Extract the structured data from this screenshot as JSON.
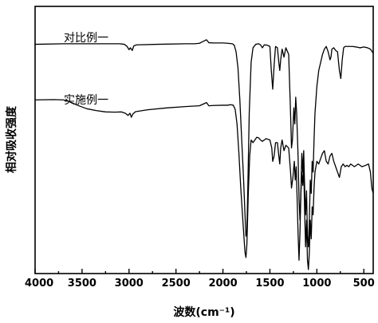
{
  "chart_data": {
    "type": "line",
    "title": "",
    "xlabel": "波数(cm⁻¹)",
    "ylabel": "相对吸收强度",
    "xlim": [
      4000,
      400
    ],
    "x_reversed": true,
    "xticks": [
      4000,
      3500,
      3000,
      2500,
      2000,
      1500,
      1000,
      500
    ],
    "y_ticks_shown": false,
    "ylim": [
      0,
      1
    ],
    "grid": false,
    "legend": "none",
    "series": [
      {
        "name": "对比例一",
        "points": [
          [
            4000,
            0.858
          ],
          [
            3700,
            0.86
          ],
          [
            3400,
            0.86
          ],
          [
            3100,
            0.86
          ],
          [
            3050,
            0.858
          ],
          [
            3020,
            0.85
          ],
          [
            3000,
            0.838
          ],
          [
            2985,
            0.845
          ],
          [
            2965,
            0.835
          ],
          [
            2950,
            0.852
          ],
          [
            2920,
            0.856
          ],
          [
            2700,
            0.858
          ],
          [
            2400,
            0.86
          ],
          [
            2300,
            0.86
          ],
          [
            2250,
            0.862
          ],
          [
            2175,
            0.875
          ],
          [
            2150,
            0.864
          ],
          [
            2100,
            0.863
          ],
          [
            2000,
            0.863
          ],
          [
            1950,
            0.862
          ],
          [
            1900,
            0.86
          ],
          [
            1880,
            0.855
          ],
          [
            1860,
            0.83
          ],
          [
            1840,
            0.77
          ],
          [
            1820,
            0.65
          ],
          [
            1800,
            0.5
          ],
          [
            1780,
            0.35
          ],
          [
            1765,
            0.22
          ],
          [
            1755,
            0.14
          ],
          [
            1745,
            0.16
          ],
          [
            1735,
            0.32
          ],
          [
            1720,
            0.6
          ],
          [
            1700,
            0.79
          ],
          [
            1680,
            0.845
          ],
          [
            1650,
            0.858
          ],
          [
            1620,
            0.86
          ],
          [
            1600,
            0.856
          ],
          [
            1580,
            0.845
          ],
          [
            1560,
            0.856
          ],
          [
            1530,
            0.855
          ],
          [
            1500,
            0.85
          ],
          [
            1485,
            0.76
          ],
          [
            1470,
            0.69
          ],
          [
            1455,
            0.78
          ],
          [
            1440,
            0.85
          ],
          [
            1420,
            0.845
          ],
          [
            1405,
            0.79
          ],
          [
            1395,
            0.76
          ],
          [
            1385,
            0.8
          ],
          [
            1370,
            0.84
          ],
          [
            1350,
            0.81
          ],
          [
            1330,
            0.845
          ],
          [
            1300,
            0.82
          ],
          [
            1280,
            0.6
          ],
          [
            1270,
            0.47
          ],
          [
            1260,
            0.5
          ],
          [
            1245,
            0.62
          ],
          [
            1235,
            0.56
          ],
          [
            1225,
            0.66
          ],
          [
            1215,
            0.6
          ],
          [
            1200,
            0.44
          ],
          [
            1190,
            0.28
          ],
          [
            1180,
            0.2
          ],
          [
            1170,
            0.3
          ],
          [
            1160,
            0.45
          ],
          [
            1150,
            0.38
          ],
          [
            1140,
            0.46
          ],
          [
            1130,
            0.32
          ],
          [
            1120,
            0.22
          ],
          [
            1110,
            0.31
          ],
          [
            1100,
            0.14
          ],
          [
            1090,
            0.1
          ],
          [
            1080,
            0.2
          ],
          [
            1070,
            0.35
          ],
          [
            1060,
            0.3
          ],
          [
            1050,
            0.42
          ],
          [
            1040,
            0.38
          ],
          [
            1030,
            0.5
          ],
          [
            1020,
            0.6
          ],
          [
            1000,
            0.7
          ],
          [
            980,
            0.76
          ],
          [
            960,
            0.79
          ],
          [
            940,
            0.82
          ],
          [
            920,
            0.84
          ],
          [
            900,
            0.85
          ],
          [
            880,
            0.83
          ],
          [
            860,
            0.8
          ],
          [
            850,
            0.81
          ],
          [
            840,
            0.84
          ],
          [
            820,
            0.845
          ],
          [
            800,
            0.835
          ],
          [
            780,
            0.83
          ],
          [
            760,
            0.76
          ],
          [
            745,
            0.73
          ],
          [
            730,
            0.8
          ],
          [
            715,
            0.845
          ],
          [
            700,
            0.85
          ],
          [
            660,
            0.85
          ],
          [
            620,
            0.85
          ],
          [
            580,
            0.848
          ],
          [
            540,
            0.845
          ],
          [
            500,
            0.848
          ],
          [
            460,
            0.845
          ],
          [
            430,
            0.84
          ],
          [
            410,
            0.83
          ],
          [
            400,
            0.825
          ]
        ]
      },
      {
        "name": "实施例一",
        "points": [
          [
            4000,
            0.65
          ],
          [
            3800,
            0.651
          ],
          [
            3700,
            0.65
          ],
          [
            3650,
            0.646
          ],
          [
            3550,
            0.63
          ],
          [
            3450,
            0.617
          ],
          [
            3350,
            0.61
          ],
          [
            3250,
            0.605
          ],
          [
            3150,
            0.604
          ],
          [
            3080,
            0.605
          ],
          [
            3040,
            0.6
          ],
          [
            3010,
            0.592
          ],
          [
            2990,
            0.6
          ],
          [
            2975,
            0.585
          ],
          [
            2960,
            0.597
          ],
          [
            2930,
            0.606
          ],
          [
            2800,
            0.613
          ],
          [
            2600,
            0.62
          ],
          [
            2400,
            0.625
          ],
          [
            2250,
            0.628
          ],
          [
            2175,
            0.64
          ],
          [
            2150,
            0.628
          ],
          [
            2100,
            0.629
          ],
          [
            2000,
            0.63
          ],
          [
            1950,
            0.63
          ],
          [
            1920,
            0.632
          ],
          [
            1890,
            0.63
          ],
          [
            1870,
            0.615
          ],
          [
            1850,
            0.56
          ],
          [
            1830,
            0.45
          ],
          [
            1810,
            0.32
          ],
          [
            1790,
            0.21
          ],
          [
            1775,
            0.13
          ],
          [
            1765,
            0.08
          ],
          [
            1755,
            0.06
          ],
          [
            1745,
            0.11
          ],
          [
            1730,
            0.3
          ],
          [
            1715,
            0.44
          ],
          [
            1700,
            0.5
          ],
          [
            1680,
            0.49
          ],
          [
            1660,
            0.5
          ],
          [
            1640,
            0.51
          ],
          [
            1620,
            0.508
          ],
          [
            1600,
            0.5
          ],
          [
            1580,
            0.495
          ],
          [
            1560,
            0.5
          ],
          [
            1540,
            0.505
          ],
          [
            1500,
            0.5
          ],
          [
            1480,
            0.47
          ],
          [
            1470,
            0.42
          ],
          [
            1455,
            0.44
          ],
          [
            1440,
            0.49
          ],
          [
            1420,
            0.49
          ],
          [
            1405,
            0.44
          ],
          [
            1395,
            0.41
          ],
          [
            1385,
            0.47
          ],
          [
            1370,
            0.5
          ],
          [
            1350,
            0.46
          ],
          [
            1330,
            0.48
          ],
          [
            1300,
            0.47
          ],
          [
            1280,
            0.38
          ],
          [
            1270,
            0.32
          ],
          [
            1255,
            0.36
          ],
          [
            1240,
            0.42
          ],
          [
            1230,
            0.35
          ],
          [
            1220,
            0.4
          ],
          [
            1210,
            0.28
          ],
          [
            1200,
            0.15
          ],
          [
            1190,
            0.05
          ],
          [
            1180,
            0.15
          ],
          [
            1170,
            0.3
          ],
          [
            1160,
            0.38
          ],
          [
            1150,
            0.33
          ],
          [
            1140,
            0.4
          ],
          [
            1130,
            0.23
          ],
          [
            1120,
            0.1
          ],
          [
            1110,
            0.2
          ],
          [
            1100,
            0.05
          ],
          [
            1090,
            0.015
          ],
          [
            1080,
            0.08
          ],
          [
            1070,
            0.2
          ],
          [
            1060,
            0.13
          ],
          [
            1050,
            0.25
          ],
          [
            1040,
            0.22
          ],
          [
            1030,
            0.32
          ],
          [
            1020,
            0.38
          ],
          [
            1000,
            0.42
          ],
          [
            980,
            0.41
          ],
          [
            960,
            0.43
          ],
          [
            940,
            0.45
          ],
          [
            920,
            0.46
          ],
          [
            900,
            0.42
          ],
          [
            880,
            0.41
          ],
          [
            860,
            0.44
          ],
          [
            840,
            0.45
          ],
          [
            820,
            0.42
          ],
          [
            800,
            0.4
          ],
          [
            780,
            0.38
          ],
          [
            760,
            0.36
          ],
          [
            740,
            0.4
          ],
          [
            720,
            0.41
          ],
          [
            700,
            0.4
          ],
          [
            680,
            0.405
          ],
          [
            660,
            0.4
          ],
          [
            640,
            0.41
          ],
          [
            600,
            0.4
          ],
          [
            560,
            0.41
          ],
          [
            520,
            0.4
          ],
          [
            480,
            0.405
          ],
          [
            450,
            0.41
          ],
          [
            430,
            0.38
          ],
          [
            415,
            0.32
          ],
          [
            400,
            0.3
          ]
        ]
      }
    ]
  }
}
